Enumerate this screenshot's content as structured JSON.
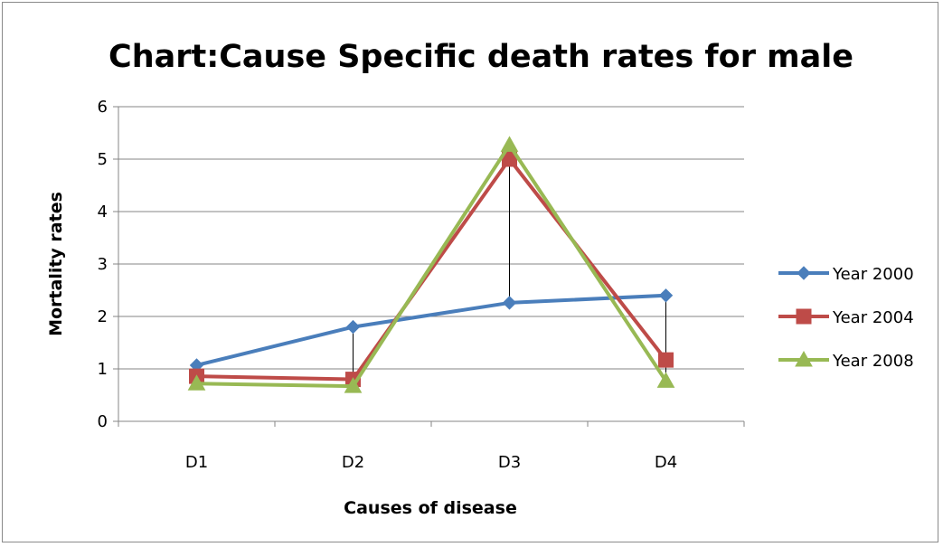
{
  "chart_data": {
    "type": "line",
    "title": "Chart:Cause Specific death rates for male",
    "xlabel": "Causes of disease",
    "ylabel": "Mortality rates",
    "categories": [
      "D1",
      "D2",
      "D3",
      "D4"
    ],
    "ylim": [
      0,
      6
    ],
    "yticks": [
      "0",
      "1",
      "2",
      "3",
      "4",
      "5",
      "6"
    ],
    "grid": true,
    "high_low_lines": true,
    "legend_position": "right",
    "series": [
      {
        "name": "Year 2000",
        "color": "#4a7ebb",
        "marker": "diamond",
        "values": [
          1.07,
          1.8,
          2.26,
          2.4
        ]
      },
      {
        "name": "Year 2004",
        "color": "#be4b48",
        "marker": "square",
        "values": [
          0.86,
          0.8,
          5.0,
          1.17
        ]
      },
      {
        "name": "Year 2008",
        "color": "#98b954",
        "marker": "triangle",
        "values": [
          0.72,
          0.67,
          5.27,
          0.77
        ]
      }
    ]
  }
}
